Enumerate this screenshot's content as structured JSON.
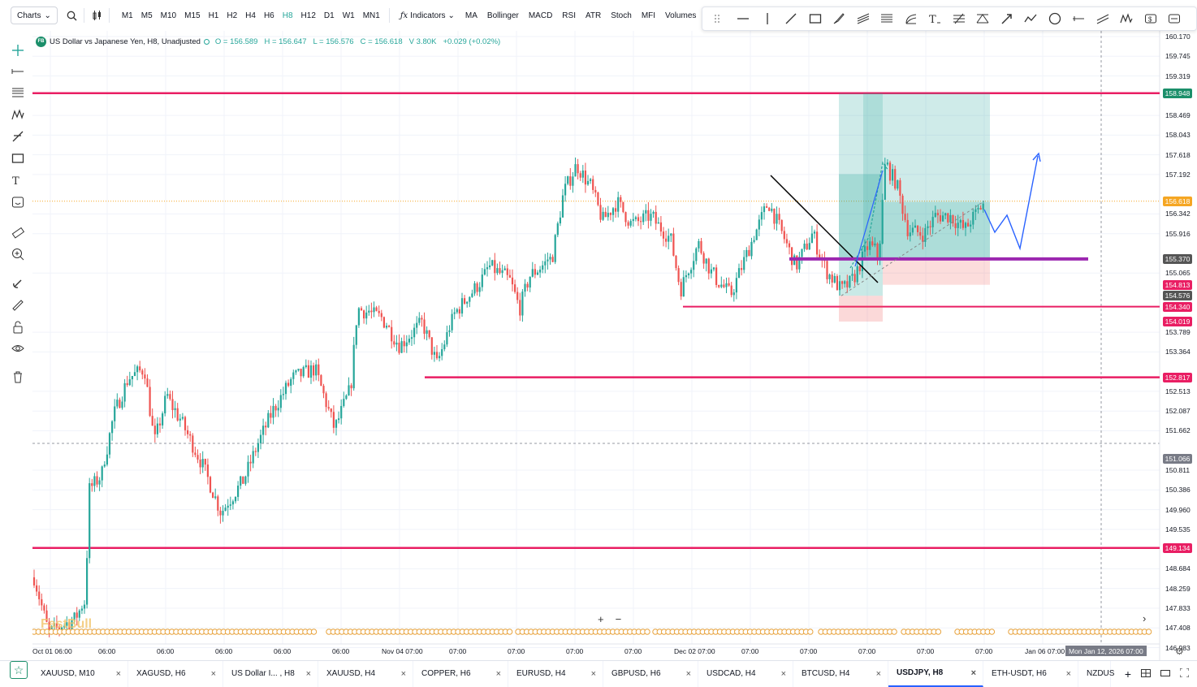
{
  "toolbar": {
    "charts_label": "Charts",
    "timeframes": [
      "M1",
      "M5",
      "M10",
      "M15",
      "H1",
      "H2",
      "H4",
      "H6",
      "H8",
      "H12",
      "D1",
      "W1",
      "MN1"
    ],
    "active_timeframe": "H8",
    "indicators_label": "Indicators",
    "indicator_items": [
      "MA",
      "Bollinger",
      "MACD",
      "RSI",
      "ATR",
      "Stoch",
      "MFI",
      "Volumes"
    ]
  },
  "legend": {
    "symbol_badge": "FB",
    "title": "US Dollar vs Japanese Yen, H8, Unadjusted",
    "open": "O = 156.589",
    "high": "H = 156.647",
    "low": "L = 156.576",
    "close": "C = 156.618",
    "volume": "V 3.80K",
    "change": "+0.029 (+0.02%)"
  },
  "price_scale": {
    "ticks": [
      {
        "v": 160.17,
        "t": "160.170"
      },
      {
        "v": 159.745,
        "t": "159.745"
      },
      {
        "v": 159.319,
        "t": "159.319"
      },
      {
        "v": 158.469,
        "t": "158.469"
      },
      {
        "v": 158.043,
        "t": "158.043"
      },
      {
        "v": 157.618,
        "t": "157.618"
      },
      {
        "v": 157.192,
        "t": "157.192"
      },
      {
        "v": 156.342,
        "t": "156.342"
      },
      {
        "v": 155.916,
        "t": "155.916"
      },
      {
        "v": 155.065,
        "t": "155.065"
      },
      {
        "v": 153.789,
        "t": "153.789"
      },
      {
        "v": 153.364,
        "t": "153.364"
      },
      {
        "v": 152.513,
        "t": "152.513"
      },
      {
        "v": 152.087,
        "t": "152.087"
      },
      {
        "v": 151.662,
        "t": "151.662"
      },
      {
        "v": 150.811,
        "t": "150.811"
      },
      {
        "v": 150.386,
        "t": "150.386"
      },
      {
        "v": 149.96,
        "t": "149.960"
      },
      {
        "v": 149.535,
        "t": "149.535"
      },
      {
        "v": 148.684,
        "t": "148.684"
      },
      {
        "v": 148.259,
        "t": "148.259"
      },
      {
        "v": 147.833,
        "t": "147.833"
      },
      {
        "v": 147.408,
        "t": "147.408"
      },
      {
        "v": 146.983,
        "t": "146.983"
      }
    ]
  },
  "price_labels": [
    {
      "v": 158.948,
      "t": "158.948",
      "color": "#1b8f6a"
    },
    {
      "v": 156.618,
      "t": "156.618",
      "color": "#f5a623"
    },
    {
      "v": 155.37,
      "t": "155.370",
      "color": "#555555"
    },
    {
      "v": 154.813,
      "t": "154.813",
      "color": "#e91e63"
    },
    {
      "v": 154.576,
      "t": "154.576",
      "color": "#555555"
    },
    {
      "v": 154.34,
      "t": "154.340",
      "color": "#e91e63"
    },
    {
      "v": 154.019,
      "t": "154.019",
      "color": "#e91e63"
    },
    {
      "v": 152.817,
      "t": "152.817",
      "color": "#e91e63"
    },
    {
      "v": 151.066,
      "t": "151.066",
      "color": "#787b86"
    },
    {
      "v": 149.134,
      "t": "149.134",
      "color": "#e91e63"
    }
  ],
  "time_scale": [
    "Oct 01 06:00",
    "06:00",
    "06:00",
    "06:00",
    "06:00",
    "06:00",
    "Nov 04 07:00",
    "07:00",
    "07:00",
    "07:00",
    "07:00",
    "Dec 02 07:00",
    "07:00",
    "07:00",
    "07:00",
    "07:00",
    "07:00",
    "Jan 06 07:00"
  ],
  "crosshair_time": "Mon Jan 12, 2026 07:00",
  "watermark": "FastBull",
  "tabs": [
    {
      "label": "XAUUSD, M10"
    },
    {
      "label": "XAGUSD, H6"
    },
    {
      "label": "US Dollar I... , H8"
    },
    {
      "label": "XAUUSD, H4"
    },
    {
      "label": "COPPER, H6"
    },
    {
      "label": "EURUSD, H4"
    },
    {
      "label": "GBPUSD, H6"
    },
    {
      "label": "USDCAD, H4"
    },
    {
      "label": "BTCUSD, H4"
    },
    {
      "label": "USDJPY, H8"
    },
    {
      "label": "ETH-USDT, H6"
    },
    {
      "label": "NZDUS"
    }
  ],
  "active_tab": "USDJPY, H8",
  "colors": {
    "up": "#26a69a",
    "down": "#ef5350",
    "level": "#e91e63",
    "purple": "#9c27b0",
    "accent": "#2962ff",
    "target": "#1b8f6a"
  },
  "icons": {
    "left_toolbar": [
      "crosshair-icon",
      "horizontal-ray-icon",
      "fib-retracement-icon",
      "pattern-icon",
      "pen-icon",
      "rectangle-icon",
      "text-icon",
      "emoji-icon",
      "ruler-icon",
      "zoom-in-icon",
      "magnet-icon",
      "lock-drawing-icon",
      "lock-icon",
      "eye-icon",
      "trash-icon"
    ],
    "drawing_toolbar": [
      "grip-icon",
      "horizontal-line-icon",
      "vertical-line-icon",
      "trend-line-icon",
      "rectangle-icon",
      "brush-icon",
      "parallel-channel-icon",
      "fib-icon",
      "fib-fan-icon",
      "text-icon",
      "gann-icon",
      "pitchfork-icon",
      "arrow-icon",
      "path-icon",
      "circle-icon",
      "ray-icon",
      "parallel-lines-icon",
      "zigzag-icon",
      "price-label-icon",
      "date-range-icon"
    ]
  }
}
